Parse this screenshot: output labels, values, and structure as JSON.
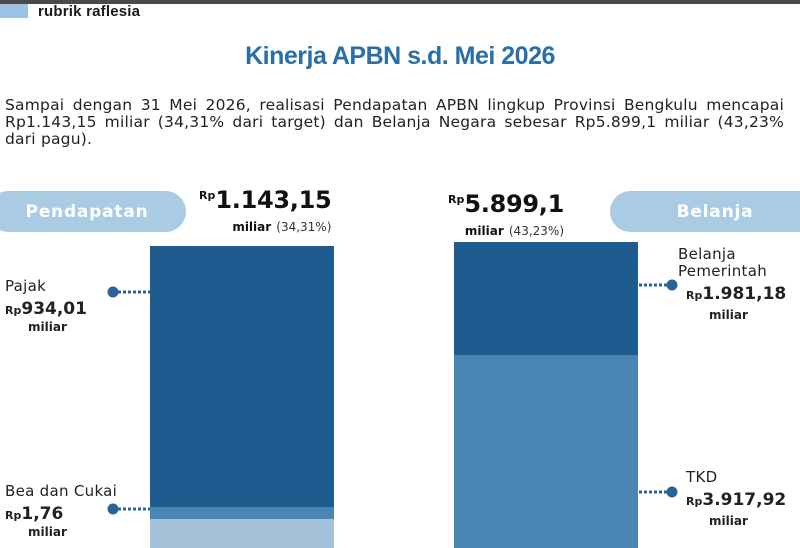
{
  "brand": {
    "name": "rubrik raflesia"
  },
  "title": "Kinerja APBN s.d. Mei 2026",
  "intro": "Sampai dengan 31 Mei 2026, realisasi Pendapatan APBN lingkup Provinsi Bengkulu mencapai Rp1.143,15 miliar (34,31% dari target) dan Belanja Negara sebesar Rp5.899,1 miliar (43,23% dari pagu).",
  "colors": {
    "title": "#2a6fa6",
    "pill": "#a9cbe4",
    "dark": "#1e5b8f",
    "mid": "#4a86b4",
    "light": "#a3c2d9",
    "dot": "#2a6396"
  },
  "pendapatan": {
    "pill": "Pendapatan",
    "total_rp": "Rp",
    "total_value": "1.143,15",
    "total_unit": "miliar",
    "total_pct": "(34,31%)",
    "items": [
      {
        "name": "Pajak",
        "rp": "Rp",
        "value": "934,01",
        "unit": "miliar"
      },
      {
        "name": "Bea dan Cukai",
        "rp": "Rp",
        "value": "1,76",
        "unit": "miliar"
      }
    ]
  },
  "belanja": {
    "pill": "Belanja",
    "total_rp": "Rp",
    "total_value": "5.899,1",
    "total_unit": "miliar",
    "total_pct": "(43,23%)",
    "items": [
      {
        "name_line1": "Belanja",
        "name_line2": "Pemerintah",
        "rp": "Rp",
        "value": "1.981,18",
        "unit": "miliar"
      },
      {
        "name": "TKD",
        "rp": "Rp",
        "value": "3.917,92",
        "unit": "miliar"
      }
    ]
  },
  "chart_data": {
    "type": "bar",
    "stacked": true,
    "unit": "miliar",
    "categories": [
      "Pendapatan",
      "Belanja"
    ],
    "series": [
      {
        "name": "Pajak",
        "category": "Pendapatan",
        "value": 934.01
      },
      {
        "name": "Bea dan Cukai",
        "category": "Pendapatan",
        "value": 1.76
      },
      {
        "name": "Belanja Pemerintah",
        "category": "Belanja",
        "value": 1981.18
      },
      {
        "name": "TKD",
        "category": "Belanja",
        "value": 3917.92
      }
    ],
    "totals": {
      "Pendapatan": 1143.15,
      "Belanja": 5899.1
    }
  }
}
